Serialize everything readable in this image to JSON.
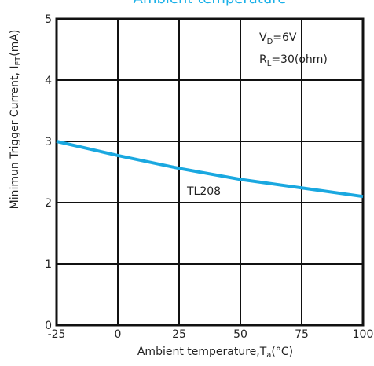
{
  "chart_data": {
    "type": "line",
    "title": "Ambient temperature",
    "x_label": {
      "text": "Ambient  temperature,T",
      "sub": "a",
      "rest": "(°C)"
    },
    "y_label": {
      "text": "Minimun  Trigger  Current,  I",
      "sub": "FT",
      "rest": "(mA)"
    },
    "x": [
      -25,
      0,
      25,
      50,
      75,
      100
    ],
    "series": [
      {
        "name": "TL208",
        "color": "#1aa8e0",
        "values": [
          3.0,
          2.77,
          2.56,
          2.38,
          2.24,
          2.1
        ]
      }
    ],
    "xlim": [
      -25,
      100
    ],
    "ylim": [
      0,
      5
    ],
    "xticks": [
      -25,
      0,
      25,
      50,
      75,
      100
    ],
    "yticks": [
      0,
      1,
      2,
      3,
      4,
      5
    ],
    "grid": true,
    "annotations": [
      {
        "text": "V",
        "sub": "D",
        "rest": "=6V"
      },
      {
        "text": "R",
        "sub": "L",
        "rest": "=30(ohm)"
      }
    ]
  }
}
